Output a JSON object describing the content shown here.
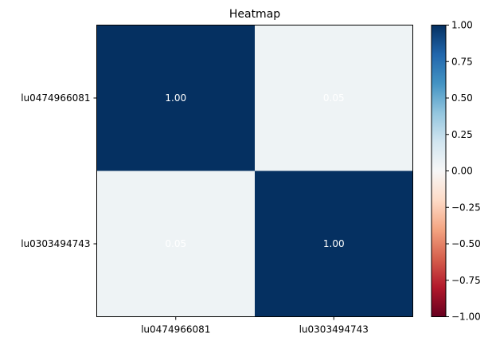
{
  "chart_data": {
    "type": "heatmap",
    "title": "Heatmap",
    "x_labels": [
      "lu0474966081",
      "lu0303494743"
    ],
    "y_labels": [
      "lu0474966081",
      "lu0303494743"
    ],
    "values": [
      [
        1.0,
        0.05
      ],
      [
        0.05,
        1.0
      ]
    ],
    "cell_labels": [
      [
        "1.00",
        "0.05"
      ],
      [
        "0.05",
        "1.00"
      ]
    ],
    "colorbar": {
      "range": [
        -1.0,
        1.0
      ],
      "ticks": [
        1.0,
        0.75,
        0.5,
        0.25,
        0.0,
        -0.25,
        -0.5,
        -0.75,
        -1.0
      ],
      "tick_labels": [
        "1.00",
        "0.75",
        "0.50",
        "0.25",
        "0.00",
        "−0.25",
        "−0.50",
        "−0.75",
        "−1.00"
      ],
      "colormap": "RdBu",
      "colormap_stops": [
        "#67001f",
        "#b2182b",
        "#d6604d",
        "#f4a582",
        "#fddbc7",
        "#f7f7f7",
        "#d1e5f0",
        "#92c5de",
        "#4393c3",
        "#2166ac",
        "#053061"
      ]
    }
  }
}
